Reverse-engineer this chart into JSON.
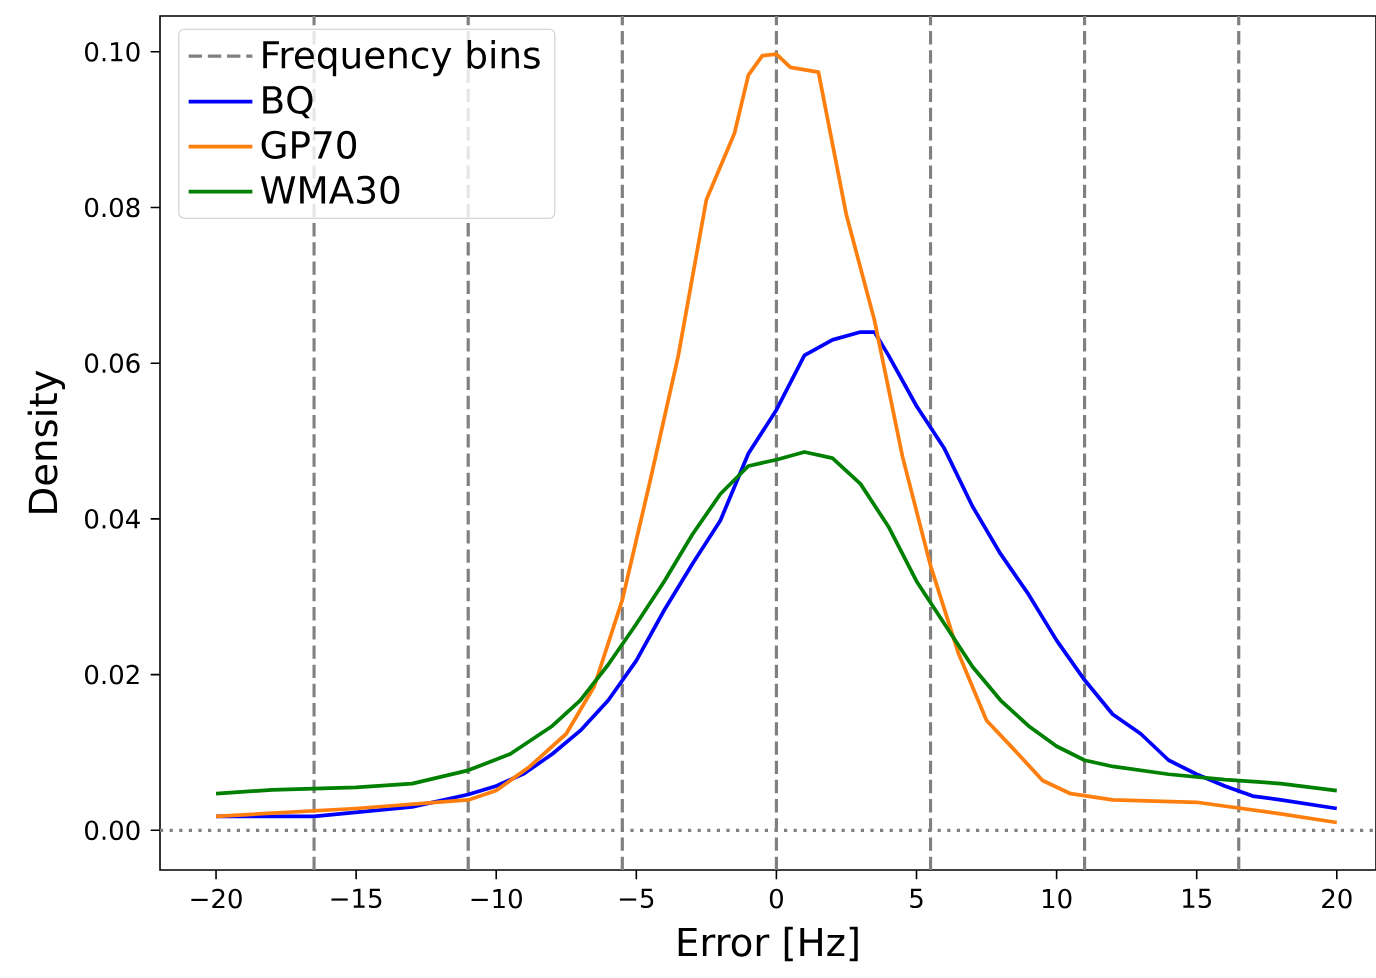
{
  "chart_data": {
    "type": "line",
    "xlabel": "Error [Hz]",
    "ylabel": "Density",
    "xlim": [
      -22,
      21.4
    ],
    "ylim": [
      -0.0051,
      0.1046
    ],
    "xticks": [
      {
        "value": -20,
        "label": "−20"
      },
      {
        "value": -15,
        "label": "−15"
      },
      {
        "value": -10,
        "label": "−10"
      },
      {
        "value": -5,
        "label": "−5"
      },
      0,
      5,
      10,
      15,
      20
    ],
    "yticks": [
      {
        "value": 0,
        "label": "0.00"
      },
      {
        "value": 0.02,
        "label": "0.02"
      },
      {
        "value": 0.04,
        "label": "0.04"
      },
      {
        "value": 0.06,
        "label": "0.06"
      },
      {
        "value": 0.08,
        "label": "0.08"
      },
      {
        "value": 0.1,
        "label": "0.10"
      }
    ],
    "legend": "top left",
    "line_style": "solid",
    "marker": "none",
    "ref_lines": [
      {
        "axis": "x",
        "value": -16.5,
        "label": "Frequency bins",
        "color": "#808080",
        "line_style": "dashed"
      },
      {
        "axis": "x",
        "value": -11,
        "color": "#808080",
        "line_style": "dashed"
      },
      {
        "axis": "x",
        "value": -5.5,
        "color": "#808080",
        "line_style": "dashed"
      },
      {
        "axis": "x",
        "value": 0,
        "color": "#808080",
        "line_style": "dashed"
      },
      {
        "axis": "x",
        "value": 5.5,
        "color": "#808080",
        "line_style": "dashed"
      },
      {
        "axis": "x",
        "value": 11,
        "color": "#808080",
        "line_style": "dashed"
      },
      {
        "axis": "x",
        "value": 16.5,
        "color": "#808080",
        "line_style": "dashed"
      },
      {
        "axis": "y",
        "value": 0,
        "color": "#808080",
        "line_style": "dotted"
      }
    ],
    "series": [
      {
        "name": "BQ",
        "color": "#0000ff",
        "x": [
          -20,
          -16.5,
          -13,
          -11,
          -10,
          -9,
          -8,
          -7,
          -6,
          -5,
          -4,
          -3,
          -2,
          -1,
          0,
          1,
          2,
          3,
          3.5,
          4,
          5,
          6,
          7,
          8,
          9,
          10,
          11,
          12,
          13,
          14,
          15,
          16,
          17,
          18,
          20
        ],
        "values": [
          0.0018,
          0.0018,
          0.003,
          0.0046,
          0.0057,
          0.0073,
          0.0098,
          0.0128,
          0.0167,
          0.0218,
          0.0283,
          0.0342,
          0.0398,
          0.0484,
          0.054,
          0.061,
          0.063,
          0.064,
          0.064,
          0.061,
          0.0545,
          0.049,
          0.0416,
          0.0355,
          0.0303,
          0.0244,
          0.0193,
          0.0149,
          0.0124,
          0.009,
          0.0072,
          0.0057,
          0.0044,
          0.0039,
          0.0028
        ]
      },
      {
        "name": "GP70",
        "color": "#ff7f0e",
        "x": [
          -20,
          -15,
          -11,
          -10,
          -8.8,
          -7.5,
          -6.5,
          -5.5,
          -4.5,
          -3.5,
          -2.5,
          -1.5,
          -1,
          -0.5,
          0,
          0.5,
          1.5,
          2.5,
          3.5,
          4.5,
          5.5,
          6.5,
          7.5,
          8.5,
          9.5,
          10.5,
          12,
          15,
          18,
          20
        ],
        "values": [
          0.0018,
          0.0028,
          0.0039,
          0.0051,
          0.0082,
          0.0124,
          0.0185,
          0.0296,
          0.045,
          0.061,
          0.081,
          0.0895,
          0.097,
          0.0995,
          0.0997,
          0.098,
          0.0974,
          0.079,
          0.0655,
          0.048,
          0.034,
          0.0227,
          0.0141,
          0.0103,
          0.0064,
          0.0047,
          0.0039,
          0.0036,
          0.0021,
          0.001
        ]
      },
      {
        "name": "WMA30",
        "color": "#008000",
        "x": [
          -20,
          -18,
          -15,
          -13,
          -11,
          -9.5,
          -8,
          -7,
          -6,
          -5,
          -4,
          -3,
          -2,
          -1,
          0,
          1,
          2,
          3,
          4,
          5,
          6,
          7,
          8,
          9,
          10,
          11,
          12,
          14,
          16,
          18,
          20
        ],
        "values": [
          0.0047,
          0.0052,
          0.0055,
          0.006,
          0.0077,
          0.0098,
          0.0134,
          0.0167,
          0.0213,
          0.0265,
          0.032,
          0.038,
          0.0432,
          0.0468,
          0.0476,
          0.0486,
          0.0478,
          0.0445,
          0.039,
          0.032,
          0.0265,
          0.021,
          0.0167,
          0.0134,
          0.0108,
          0.009,
          0.0082,
          0.0072,
          0.0065,
          0.006,
          0.0051
        ]
      }
    ]
  }
}
